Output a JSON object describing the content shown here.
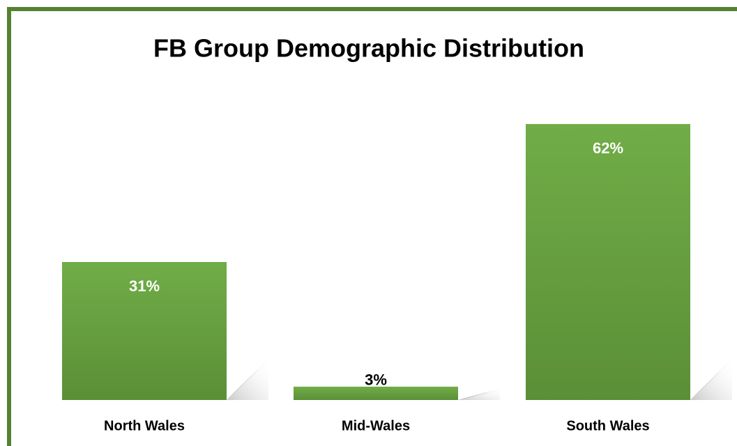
{
  "chart_data": {
    "type": "bar",
    "title": "FB Group Demographic Distribution",
    "categories": [
      "North Wales",
      "Mid-Wales",
      "South Wales"
    ],
    "values": [
      31,
      3,
      62
    ],
    "value_labels": [
      "31%",
      "3%",
      "62%"
    ],
    "color": "#70ad47"
  }
}
